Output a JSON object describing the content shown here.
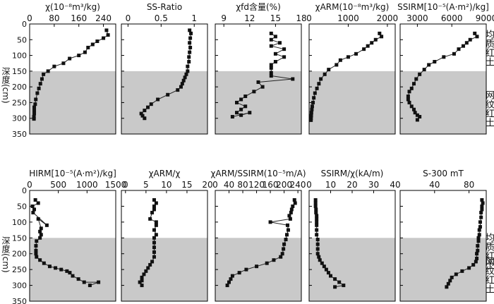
{
  "figure": {
    "shade_depth_from": 150,
    "shade_depth_to": 350,
    "shade_color": "#c9c9c9",
    "line_color": "#222222",
    "marker_color": "#111111",
    "y_axis_title": "深度(cm)",
    "strata_labels": [
      "均质红土",
      "网纹红土"
    ]
  },
  "chart_data": [
    {
      "type": "line",
      "row": 0,
      "col": 0,
      "title": "χ(10⁻⁸m³/kg)",
      "xlim": [
        0,
        280
      ],
      "xticks": [
        0,
        80,
        160,
        240
      ],
      "ylim": [
        350,
        0
      ],
      "yticks": [
        0,
        50,
        100,
        150,
        200,
        250,
        300,
        350
      ],
      "x": [
        250,
        255,
        240,
        220,
        205,
        190,
        180,
        160,
        130,
        110,
        80,
        60,
        45,
        40,
        35,
        30,
        25,
        20,
        18,
        15,
        15,
        15,
        14,
        14,
        14
      ],
      "y": [
        20,
        35,
        45,
        55,
        65,
        75,
        90,
        100,
        110,
        125,
        135,
        150,
        160,
        175,
        190,
        205,
        220,
        240,
        255,
        265,
        275,
        285,
        295,
        300,
        302
      ]
    },
    {
      "type": "line",
      "row": 0,
      "col": 1,
      "title": "SS-Ratio",
      "xlim": [
        -0.1,
        1.2
      ],
      "xticks": [
        0.0,
        0.5,
        1.0
      ],
      "ylim": [
        350,
        0
      ],
      "yticks": [
        0,
        50,
        100,
        150,
        200,
        250,
        300,
        350
      ],
      "x": [
        0.93,
        0.95,
        0.94,
        0.93,
        0.94,
        0.93,
        0.92,
        0.92,
        0.9,
        0.9,
        0.88,
        0.86,
        0.84,
        0.82,
        0.8,
        0.75,
        0.6,
        0.45,
        0.35,
        0.3,
        0.25,
        0.2,
        0.22,
        0.25
      ],
      "y": [
        20,
        30,
        45,
        60,
        75,
        90,
        105,
        120,
        135,
        150,
        160,
        170,
        180,
        190,
        200,
        210,
        225,
        240,
        255,
        265,
        275,
        285,
        292,
        300
      ]
    },
    {
      "type": "line",
      "row": 0,
      "col": 2,
      "title": "χfd含量(%)",
      "xlim": [
        8,
        18
      ],
      "xticks": [
        9,
        12,
        15,
        18
      ],
      "ylim": [
        350,
        0
      ],
      "yticks": [
        0,
        50,
        100,
        150,
        200,
        250,
        300,
        350
      ],
      "x": [
        14.5,
        15,
        14.5,
        15.5,
        14.5,
        16,
        15,
        16,
        15,
        14.5,
        14.5,
        14.5,
        14.5,
        17,
        13,
        13.5,
        12.5,
        11.5,
        11,
        10.5,
        11.5,
        11,
        10.5,
        11,
        12,
        10
      ],
      "y": [
        30,
        40,
        50,
        60,
        70,
        80,
        95,
        105,
        120,
        130,
        140,
        155,
        165,
        175,
        185,
        200,
        215,
        230,
        240,
        250,
        262,
        272,
        282,
        290,
        282,
        295
      ]
    },
    {
      "type": "line",
      "row": 0,
      "col": 3,
      "title": "χARM(10⁻⁸m³/kg)",
      "xlim": [
        0,
        2200
      ],
      "xticks": [
        0,
        1000,
        2000
      ],
      "ylim": [
        350,
        0
      ],
      "yticks": [
        0,
        50,
        100,
        150,
        200,
        250,
        300,
        350
      ],
      "x": [
        1800,
        1850,
        1700,
        1600,
        1500,
        1400,
        1200,
        1000,
        800,
        700,
        500,
        400,
        300,
        250,
        200,
        150,
        120,
        100,
        80,
        70,
        60,
        55,
        50,
        48
      ],
      "y": [
        30,
        40,
        50,
        60,
        70,
        80,
        95,
        105,
        115,
        130,
        145,
        160,
        175,
        190,
        205,
        220,
        235,
        250,
        262,
        272,
        282,
        292,
        300,
        306
      ]
    },
    {
      "type": "line",
      "row": 0,
      "col": 4,
      "title": "SSIRM[10⁻⁵(A·m²)/kg]",
      "xlim": [
        1500,
        9000
      ],
      "xticks": [
        3000,
        6000,
        9000
      ],
      "ylim": [
        350,
        0
      ],
      "yticks": [
        0,
        50,
        100,
        150,
        200,
        250,
        300,
        350
      ],
      "x": [
        8000,
        8200,
        7600,
        7300,
        7000,
        6600,
        6200,
        5300,
        4500,
        4000,
        3600,
        3200,
        2900,
        2700,
        2500,
        2300,
        2200,
        2200,
        2300,
        2500,
        2700,
        2800,
        3000,
        3200,
        3000
      ],
      "y": [
        30,
        40,
        50,
        60,
        70,
        80,
        95,
        105,
        120,
        130,
        145,
        160,
        175,
        190,
        205,
        215,
        230,
        240,
        250,
        262,
        272,
        282,
        290,
        295,
        305
      ]
    },
    {
      "type": "line",
      "row": 1,
      "col": 0,
      "title": "HIRM[10⁻⁵(A·m²)/kg]",
      "xlim": [
        0,
        1500
      ],
      "xticks": [
        0,
        500,
        1000,
        1500
      ],
      "ylim": [
        350,
        0
      ],
      "yticks": [
        0,
        50,
        100,
        150,
        200,
        250,
        300,
        350
      ],
      "x": [
        100,
        150,
        50,
        80,
        60,
        300,
        150,
        200,
        180,
        200,
        180,
        120,
        110,
        110,
        110,
        120,
        180,
        250,
        350,
        450,
        550,
        650,
        700,
        750,
        850,
        950,
        1200,
        1050
      ],
      "y": [
        30,
        40,
        50,
        60,
        70,
        110,
        90,
        120,
        130,
        140,
        150,
        160,
        175,
        190,
        200,
        210,
        220,
        230,
        240,
        245,
        250,
        255,
        260,
        270,
        280,
        290,
        290,
        300
      ]
    },
    {
      "type": "line",
      "row": 1,
      "col": 1,
      "title": "χARM/χ",
      "xlim": [
        -1,
        20
      ],
      "xticks": [
        0,
        5,
        10,
        15,
        20
      ],
      "ylim": [
        350,
        0
      ],
      "yticks": [
        0,
        50,
        100,
        150,
        200,
        250,
        300,
        350
      ],
      "x": [
        7,
        7.5,
        7,
        7,
        6.5,
        6,
        7.5,
        7.5,
        7,
        7.5,
        7,
        7,
        7,
        7,
        7,
        6.5,
        6,
        5.5,
        5,
        4.5,
        4,
        4,
        3.5,
        4
      ],
      "y": [
        30,
        40,
        50,
        60,
        70,
        90,
        100,
        110,
        125,
        140,
        150,
        165,
        180,
        195,
        210,
        225,
        235,
        245,
        255,
        265,
        275,
        285,
        290,
        300
      ]
    },
    {
      "type": "line",
      "row": 1,
      "col": 2,
      "title": "χARM/SSIRM(10⁻⁵m/A)",
      "xlim": [
        0,
        250
      ],
      "xticks": [
        0,
        40,
        80,
        120,
        160,
        200,
        240
      ],
      "ylim": [
        350,
        0
      ],
      "yticks": [
        0,
        50,
        100,
        150,
        200,
        250,
        300,
        350
      ],
      "x": [
        230,
        232,
        225,
        222,
        220,
        215,
        218,
        160,
        210,
        212,
        208,
        205,
        200,
        198,
        195,
        190,
        170,
        150,
        120,
        90,
        70,
        50,
        45,
        40,
        35
      ],
      "y": [
        30,
        40,
        50,
        60,
        70,
        80,
        90,
        100,
        110,
        125,
        140,
        155,
        170,
        185,
        200,
        210,
        220,
        230,
        240,
        250,
        260,
        270,
        280,
        290,
        300
      ]
    },
    {
      "type": "line",
      "row": 1,
      "col": 3,
      "title": "SSIRM/χ(kA/m)",
      "xlim": [
        0,
        40
      ],
      "xticks": [
        0,
        10,
        20,
        30,
        40
      ],
      "ylim": [
        350,
        0
      ],
      "yticks": [
        0,
        50,
        100,
        150,
        200,
        250,
        300,
        350
      ],
      "x": [
        3,
        3,
        3,
        3.2,
        3.2,
        3.5,
        3.5,
        3.5,
        3.5,
        3.5,
        3.5,
        4,
        4,
        4,
        4,
        4.5,
        5,
        6,
        7,
        8,
        9,
        10,
        12,
        14,
        16,
        12
      ],
      "y": [
        30,
        40,
        50,
        60,
        70,
        80,
        90,
        100,
        110,
        125,
        140,
        155,
        170,
        185,
        200,
        210,
        220,
        230,
        240,
        250,
        260,
        270,
        280,
        290,
        300,
        305
      ]
    },
    {
      "type": "line",
      "row": 1,
      "col": 4,
      "title": "S-300 mT",
      "xlim": [
        0,
        100
      ],
      "xticks": [
        40,
        80
      ],
      "ylim": [
        350,
        0
      ],
      "yticks": [
        0,
        50,
        100,
        150,
        200,
        250,
        300,
        350
      ],
      "x": [
        95,
        96,
        95,
        95,
        94,
        94,
        93,
        93,
        92,
        92,
        91,
        91,
        90,
        90,
        89,
        89,
        88,
        85,
        80,
        72,
        65,
        60,
        58,
        56,
        54
      ],
      "y": [
        30,
        40,
        50,
        60,
        70,
        85,
        100,
        115,
        125,
        140,
        150,
        160,
        175,
        190,
        200,
        215,
        225,
        235,
        245,
        255,
        265,
        275,
        285,
        295,
        305
      ]
    }
  ]
}
